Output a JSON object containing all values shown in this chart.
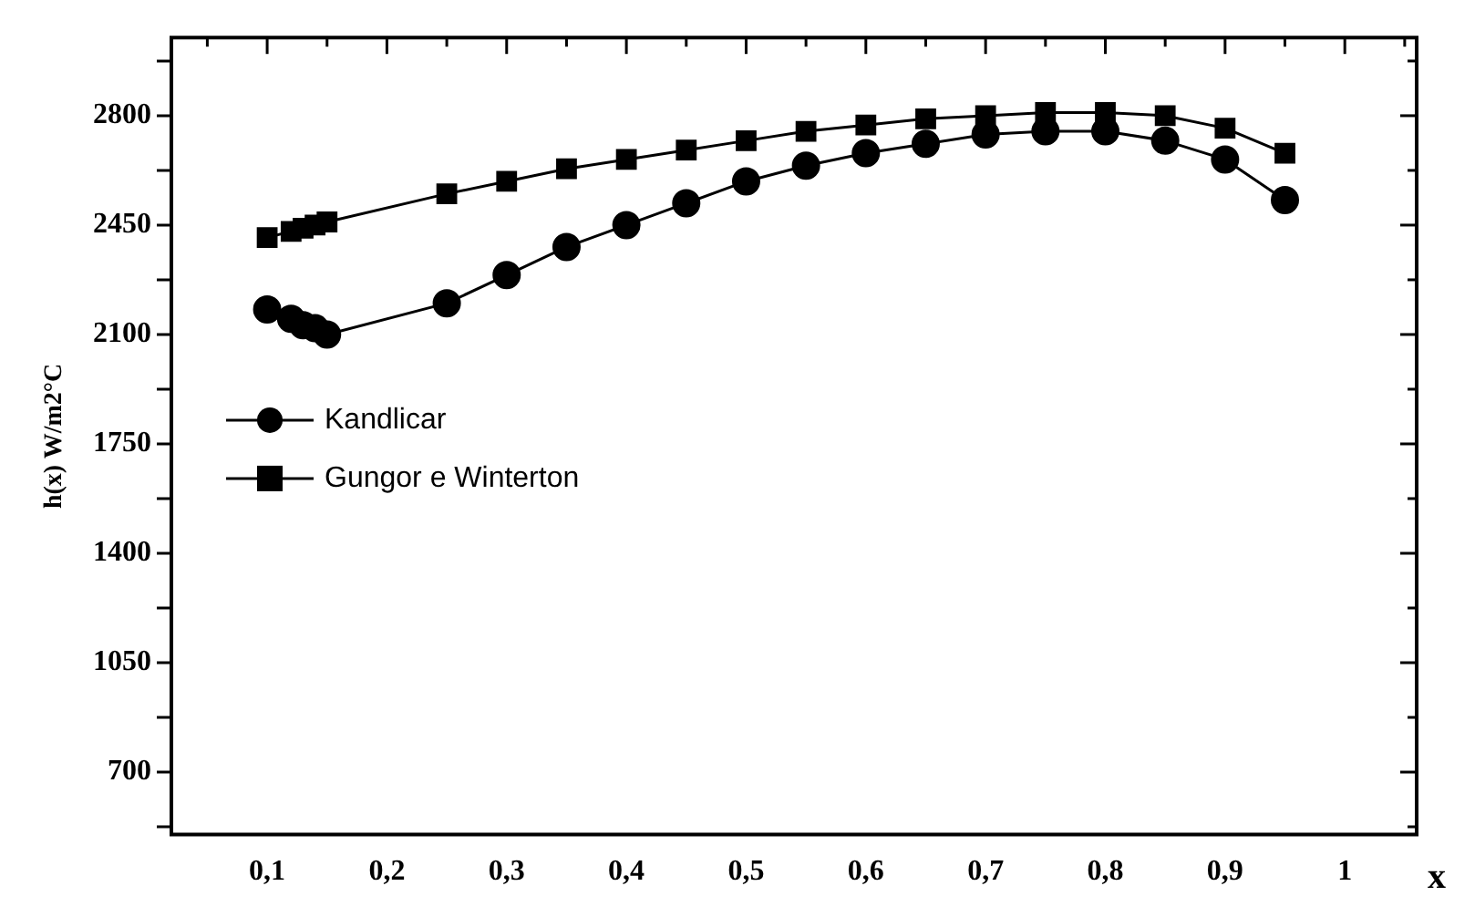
{
  "chart_data": {
    "type": "line",
    "xlabel": "x",
    "ylabel": "h(x) W/m2°C",
    "x": [
      0.1,
      0.12,
      0.13,
      0.14,
      0.15,
      0.25,
      0.3,
      0.35,
      0.4,
      0.45,
      0.5,
      0.55,
      0.6,
      0.65,
      0.7,
      0.75,
      0.8,
      0.85,
      0.9,
      0.95
    ],
    "series": [
      {
        "name": "Kandlicar",
        "color": "#000000",
        "marker": "circle",
        "values": [
          2180,
          2150,
          2130,
          2120,
          2100,
          2200,
          2290,
          2380,
          2450,
          2520,
          2590,
          2640,
          2680,
          2710,
          2740,
          2750,
          2750,
          2720,
          2660,
          2530
        ]
      },
      {
        "name": "Gungor e Winterton",
        "color": "#000000",
        "marker": "square",
        "values": [
          2410,
          2430,
          2440,
          2450,
          2460,
          2550,
          2590,
          2630,
          2660,
          2690,
          2720,
          2750,
          2770,
          2790,
          2800,
          2810,
          2810,
          2800,
          2760,
          2680
        ]
      }
    ],
    "xlim": [
      0.02,
      1.06
    ],
    "xticks": [
      {
        "value": 0.05,
        "label": null
      },
      {
        "value": 0.1,
        "label": "0,1"
      },
      {
        "value": 0.15,
        "label": null
      },
      {
        "value": 0.2,
        "label": "0,2"
      },
      {
        "value": 0.25,
        "label": null
      },
      {
        "value": 0.3,
        "label": "0,3"
      },
      {
        "value": 0.35,
        "label": null
      },
      {
        "value": 0.4,
        "label": "0,4"
      },
      {
        "value": 0.45,
        "label": null
      },
      {
        "value": 0.5,
        "label": "0,5"
      },
      {
        "value": 0.55,
        "label": null
      },
      {
        "value": 0.6,
        "label": "0,6"
      },
      {
        "value": 0.65,
        "label": null
      },
      {
        "value": 0.7,
        "label": "0,7"
      },
      {
        "value": 0.75,
        "label": null
      },
      {
        "value": 0.8,
        "label": "0,8"
      },
      {
        "value": 0.85,
        "label": null
      },
      {
        "value": 0.9,
        "label": "0,9"
      },
      {
        "value": 0.95,
        "label": null
      },
      {
        "value": 1,
        "label": "1"
      },
      {
        "value": 1.05,
        "label": null
      }
    ],
    "ylim": [
      500,
      3050
    ],
    "yticks": [
      {
        "value": 525,
        "label": null
      },
      700,
      {
        "value": 875,
        "label": null
      },
      1050,
      {
        "value": 1225,
        "label": null
      },
      1400,
      {
        "value": 1575,
        "label": null
      },
      1750,
      {
        "value": 1925,
        "label": null
      },
      2100,
      {
        "value": 2275,
        "label": null
      },
      2450,
      {
        "value": 2625,
        "label": null
      },
      2800,
      {
        "value": 2975,
        "label": null
      }
    ],
    "grid": false,
    "legend": "left",
    "line_style": "solid"
  }
}
